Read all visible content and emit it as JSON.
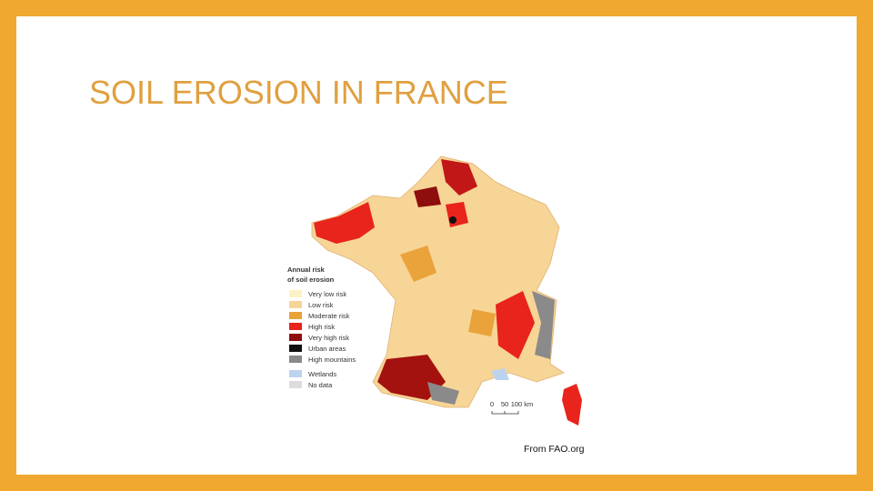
{
  "title": "SOIL EROSION IN FRANCE",
  "legend": {
    "title": [
      "Annual risk",
      "of soil erosion"
    ],
    "items": [
      {
        "label": "Very low risk",
        "color": "#fbf3c4"
      },
      {
        "label": "Low risk",
        "color": "#f7d596"
      },
      {
        "label": "Moderate risk",
        "color": "#e9a33a"
      },
      {
        "label": "High risk",
        "color": "#e8241c"
      },
      {
        "label": "Very high risk",
        "color": "#8e0e0e"
      },
      {
        "label": "Urban areas",
        "color": "#111111"
      },
      {
        "label": "High mountains",
        "color": "#8a8a8a"
      },
      {
        "label": "Wetlands",
        "color": "#bcd3ef"
      },
      {
        "label": "No data",
        "color": "#dcdcdc"
      }
    ]
  },
  "scale": {
    "labels": [
      "0",
      "50",
      "100 km"
    ]
  },
  "credit": "From FAO.org"
}
